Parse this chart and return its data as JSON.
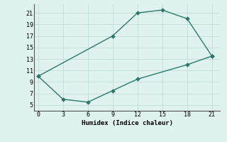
{
  "xlabel": "Humidex (Indice chaleur)",
  "upper_x": [
    0,
    9,
    12,
    15,
    18,
    21
  ],
  "upper_y": [
    10,
    17,
    21,
    21.5,
    20,
    13.5
  ],
  "lower_x": [
    0,
    3,
    6,
    9,
    12,
    18,
    21
  ],
  "lower_y": [
    10,
    6,
    5.5,
    7.5,
    9.5,
    12,
    13.5
  ],
  "line_color": "#2d7a6a",
  "bg_color": "#dff2ef",
  "grid_color_major": "#c0ddd8",
  "grid_color_minor": "#e8f6f4",
  "xlim": [
    -0.5,
    22
  ],
  "ylim": [
    4,
    22.5
  ],
  "xticks": [
    0,
    3,
    6,
    9,
    12,
    15,
    18,
    21
  ],
  "yticks": [
    5,
    7,
    9,
    11,
    13,
    15,
    17,
    19,
    21
  ]
}
